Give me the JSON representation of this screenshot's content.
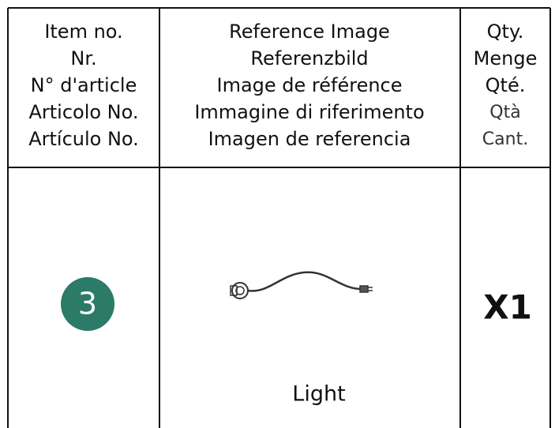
{
  "table": {
    "header": [
      [
        "Item no.",
        "Nr.",
        "N° d'article",
        "Articolo No.",
        "Artículo No."
      ],
      [
        "Reference Image",
        "Referenzbild",
        "Image de référence",
        "Immagine di riferimento",
        "Imagen de referencia"
      ],
      [
        "Qty.",
        "Menge",
        "Qté.",
        "Qtà",
        "Cant."
      ]
    ],
    "rows": [
      {
        "item": "3",
        "image_label": "Light",
        "qty": "X1"
      }
    ]
  }
}
